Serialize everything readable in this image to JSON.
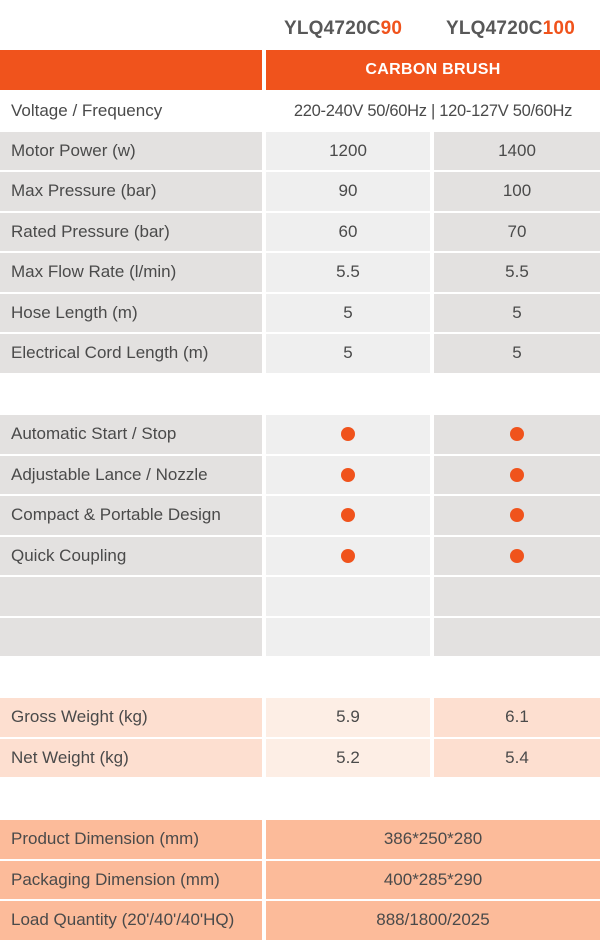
{
  "colors": {
    "accent": "#f0531c",
    "gray_label": "#e3e1e0",
    "gray_val_a": "#efefef",
    "gray_val_b": "#e3e1e0",
    "peach_label": "#fddfd0",
    "peach_val_a": "#fdeee5",
    "peach_val_b": "#fddfd0",
    "salmon": "#fcbb9a"
  },
  "models": [
    {
      "prefix": "YLQ4720C",
      "highlight": "90"
    },
    {
      "prefix": "YLQ4720C",
      "highlight": "100"
    }
  ],
  "header": {
    "category": "CARBON BRUSH"
  },
  "voltage": {
    "label": "Voltage / Frequency",
    "value": "220-240V 50/60Hz | 120-127V 50/60Hz"
  },
  "specs": [
    {
      "label": "Motor Power (w)",
      "a": "1200",
      "b": "1400"
    },
    {
      "label": "Max Pressure (bar)",
      "a": "90",
      "b": "100"
    },
    {
      "label": "Rated Pressure (bar)",
      "a": "60",
      "b": "70"
    },
    {
      "label": "Max Flow Rate (l/min)",
      "a": "5.5",
      "b": "5.5"
    },
    {
      "label": "Hose Length (m)",
      "a": "5",
      "b": "5"
    },
    {
      "label": "Electrical Cord Length (m)",
      "a": "5",
      "b": "5"
    }
  ],
  "features": [
    {
      "label": "Automatic Start / Stop",
      "a": true,
      "b": true
    },
    {
      "label": "Adjustable Lance / Nozzle",
      "a": true,
      "b": true
    },
    {
      "label": "Compact & Portable Design",
      "a": true,
      "b": true
    },
    {
      "label": "Quick Coupling",
      "a": true,
      "b": true
    },
    {
      "label": "",
      "a": false,
      "b": false
    },
    {
      "label": "",
      "a": false,
      "b": false
    }
  ],
  "weights": [
    {
      "label": "Gross Weight (kg)",
      "a": "5.9",
      "b": "6.1"
    },
    {
      "label": "Net Weight (kg)",
      "a": "5.2",
      "b": "5.4"
    }
  ],
  "dimensions": [
    {
      "label": "Product Dimension (mm)",
      "value": "386*250*280"
    },
    {
      "label": "Packaging Dimension (mm)",
      "value": "400*285*290"
    },
    {
      "label": "Load Quantity (20'/40'/40'HQ)",
      "value": "888/1800/2025"
    }
  ]
}
